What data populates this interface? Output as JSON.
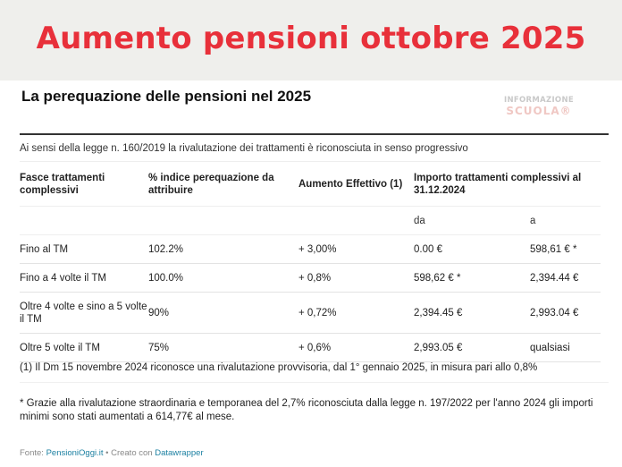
{
  "banner": {
    "title": "Aumento pensioni ottobre 2025",
    "title_color": "#e8303a",
    "background": "#efefec"
  },
  "chart": {
    "title": "La perequazione delle pensioni nel 2025",
    "logo": {
      "top": "INFORMAZIONE",
      "bottom": "SCUOLA®"
    },
    "subtitle": "Ai sensi della legge n. 160/2019 la rivalutazione dei trattamenti è riconosciuta in senso progressivo"
  },
  "table": {
    "headers": [
      "Fasce trattamenti complessivi",
      "% indice perequazione da attribuire",
      "Aumento Effettivo (1)",
      "Importo trattamenti complessivi al 31.12.2024"
    ],
    "subheaders": {
      "from": "da",
      "to": "a"
    },
    "rows": [
      {
        "band": "Fino al TM",
        "index": "102.2%",
        "increase": "+ 3,00%",
        "from": "0.00 €",
        "to": "598,61 € *"
      },
      {
        "band": "Fino a 4 volte il TM",
        "index": "100.0%",
        "increase": "+ 0,8%",
        "from": "598,62 € *",
        "to": "2,394.44 €"
      },
      {
        "band": "Oltre 4 volte e sino a 5 volte il TM",
        "index": "90%",
        "increase": "+ 0,72%",
        "from": "2,394.45 €",
        "to": "2,993.04 €"
      },
      {
        "band": "Oltre 5 volte il TM",
        "index": "75%",
        "increase": "+ 0,6%",
        "from": "2,993.05 €",
        "to": "qualsiasi"
      }
    ]
  },
  "notes": {
    "note1": "(1) Il Dm 15 novembre 2024 riconosce una rivalutazione provvisoria, dal 1° gennaio 2025, in misura pari allo 0,8%",
    "note2": "* Grazie alla rivalutazione straordinaria e temporanea del 2,7% riconosciuta dalla legge n. 197/2022 per l'anno 2024 gli importi minimi sono stati aumentati a 614,77€ al mese."
  },
  "footer": {
    "source_label": "Fonte:",
    "source_link": "PensioniOggi.it",
    "separator": "•",
    "created_label": "Creato con",
    "created_link": "Datawrapper",
    "link_color": "#1d81a2"
  }
}
